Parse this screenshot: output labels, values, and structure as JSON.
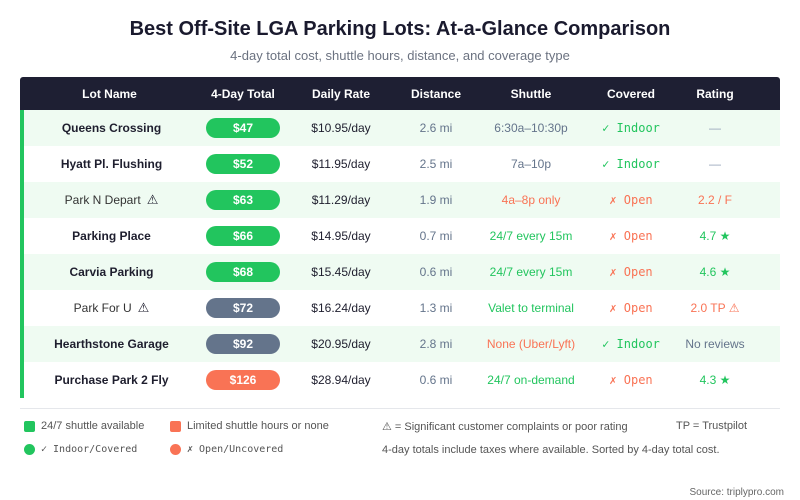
{
  "title": "Best Off-Site LGA Parking Lots: At-a-Glance Comparison",
  "subtitle": "4-day total cost, shuttle hours, distance, and coverage type",
  "colors": {
    "green": "#22c55e",
    "gray": "#64748b",
    "orange": "#f97355",
    "header": "#1e1f33"
  },
  "headers": [
    "Lot Name",
    "4-Day Total",
    "Daily Rate",
    "Distance",
    "Shuttle",
    "Covered",
    "Rating"
  ],
  "rows": [
    {
      "name": "Queens Crossing",
      "bold": true,
      "warn": false,
      "total": "$47",
      "pill": "green",
      "daily": "$10.95/day",
      "distance": "2.6 mi",
      "shuttle": "6:30a–10:30p",
      "shuttle_color": "gray",
      "covered": "✓ Indoor",
      "covered_ok": true,
      "rating": "—",
      "rating_color": "#94a3b8"
    },
    {
      "name": "Hyatt Pl. Flushing",
      "bold": true,
      "warn": false,
      "total": "$52",
      "pill": "green",
      "daily": "$11.95/day",
      "distance": "2.5 mi",
      "shuttle": "7a–10p",
      "shuttle_color": "gray",
      "covered": "✓ Indoor",
      "covered_ok": true,
      "rating": "—",
      "rating_color": "#94a3b8"
    },
    {
      "name": "Park N Depart",
      "bold": false,
      "warn": true,
      "total": "$63",
      "pill": "green",
      "daily": "$11.29/day",
      "distance": "1.9 mi",
      "shuttle": "4a–8p only",
      "shuttle_color": "orange",
      "covered": "✗ Open",
      "covered_ok": false,
      "rating": "2.2 / F",
      "rating_color": "#f97355"
    },
    {
      "name": "Parking Place",
      "bold": true,
      "warn": false,
      "total": "$66",
      "pill": "green",
      "daily": "$14.95/day",
      "distance": "0.7 mi",
      "shuttle": "24/7 every 15m",
      "shuttle_color": "green",
      "covered": "✗ Open",
      "covered_ok": false,
      "rating": "4.7 ★",
      "rating_color": "#22c55e"
    },
    {
      "name": "Carvia Parking",
      "bold": true,
      "warn": false,
      "total": "$68",
      "pill": "green",
      "daily": "$15.45/day",
      "distance": "0.6 mi",
      "shuttle": "24/7 every 15m",
      "shuttle_color": "green",
      "covered": "✗ Open",
      "covered_ok": false,
      "rating": "4.6 ★",
      "rating_color": "#22c55e"
    },
    {
      "name": "Park For U",
      "bold": false,
      "warn": true,
      "total": "$72",
      "pill": "gray",
      "daily": "$16.24/day",
      "distance": "1.3 mi",
      "shuttle": "Valet to terminal",
      "shuttle_color": "green",
      "covered": "✗ Open",
      "covered_ok": false,
      "rating": "2.0 TP ⚠",
      "rating_color": "#f97355"
    },
    {
      "name": "Hearthstone Garage",
      "bold": true,
      "warn": false,
      "total": "$92",
      "pill": "gray",
      "daily": "$20.95/day",
      "distance": "2.8 mi",
      "shuttle": "None (Uber/Lyft)",
      "shuttle_color": "orange",
      "covered": "✓ Indoor",
      "covered_ok": true,
      "rating": "No reviews",
      "rating_color": "#64748b"
    },
    {
      "name": "Purchase Park 2 Fly",
      "bold": true,
      "warn": false,
      "total": "$126",
      "pill": "orange",
      "daily": "$28.94/day",
      "distance": "0.6 mi",
      "shuttle": "24/7 on-demand",
      "shuttle_color": "green",
      "covered": "✗ Open",
      "covered_ok": false,
      "rating": "4.3 ★",
      "rating_color": "#22c55e"
    }
  ],
  "warn_symbol": "⚠",
  "legend": {
    "shuttle_247": "24/7 shuttle available",
    "limited": "Limited shuttle hours or none",
    "warn": "⚠ = Significant customer complaints or poor rating",
    "tp": "TP = Trustpilot",
    "indoor": "✓ Indoor/Covered",
    "open": "✗ Open/Uncovered",
    "note": "4-day totals include taxes where available. Sorted by 4-day total cost."
  },
  "source": "Source: triplypro.com"
}
